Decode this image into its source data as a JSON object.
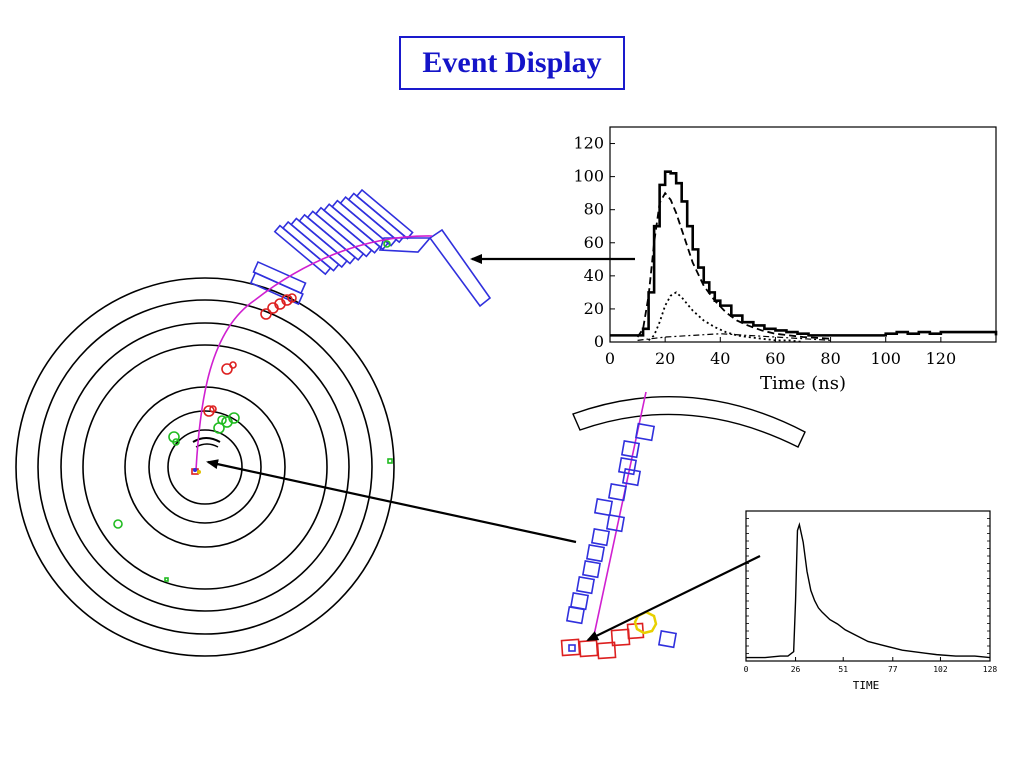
{
  "title": "Event Display",
  "chart_data": [
    {
      "type": "line",
      "title": "",
      "xlabel": "Time (ns)",
      "ylabel": "",
      "xlim": [
        0,
        140
      ],
      "ylim": [
        0,
        130
      ],
      "x_ticks": [
        "0",
        "20",
        "40",
        "60",
        "80",
        "100",
        "120"
      ],
      "y_ticks": [
        "0",
        "20",
        "40",
        "60",
        "80",
        "100",
        "120"
      ],
      "series": [
        {
          "style": "solid-step",
          "x": [
            0,
            10,
            12,
            14,
            16,
            18,
            20,
            22,
            24,
            26,
            28,
            30,
            32,
            34,
            36,
            38,
            40,
            44,
            48,
            52,
            56,
            60,
            64,
            68,
            72,
            76,
            80,
            100,
            104,
            108,
            112,
            116,
            120,
            140
          ],
          "y": [
            4,
            4,
            8,
            30,
            70,
            95,
            103,
            102,
            96,
            85,
            70,
            56,
            45,
            36,
            30,
            25,
            22,
            16,
            12,
            10,
            8,
            7,
            6,
            5,
            4,
            4,
            4,
            5,
            6,
            5,
            6,
            5,
            6,
            4
          ]
        },
        {
          "style": "dashed",
          "x": [
            10,
            12,
            14,
            16,
            18,
            20,
            22,
            24,
            26,
            28,
            30,
            34,
            38,
            42,
            46,
            50,
            55,
            60,
            65,
            70,
            80
          ],
          "y": [
            3,
            8,
            28,
            60,
            84,
            90,
            86,
            78,
            68,
            58,
            48,
            34,
            25,
            18,
            13,
            10,
            7,
            5,
            4,
            3,
            2
          ]
        },
        {
          "style": "dotted",
          "x": [
            14,
            16,
            18,
            20,
            22,
            24,
            26,
            28,
            30,
            34,
            38,
            42,
            46,
            50,
            55,
            60,
            65,
            70
          ],
          "y": [
            1,
            4,
            12,
            22,
            28,
            30,
            27,
            23,
            19,
            13,
            9,
            6,
            4,
            3,
            2,
            1,
            1,
            0
          ]
        },
        {
          "style": "dash-dot",
          "x": [
            10,
            20,
            30,
            40,
            50,
            60,
            70,
            80
          ],
          "y": [
            1,
            3,
            4,
            5,
            4,
            3,
            2,
            1
          ]
        }
      ]
    },
    {
      "type": "line",
      "title": "",
      "xlabel": "TIME",
      "ylabel": "",
      "xlim": [
        0,
        128
      ],
      "ylim": [
        0,
        100
      ],
      "x_ticks": [
        "0",
        "26",
        "51",
        "77",
        "102",
        "128"
      ],
      "series": [
        {
          "style": "solid",
          "x": [
            0,
            10,
            18,
            22,
            25,
            26,
            27,
            28,
            30,
            32,
            34,
            36,
            38,
            40,
            44,
            48,
            52,
            58,
            64,
            70,
            76,
            82,
            88,
            94,
            100,
            110,
            120,
            128
          ],
          "y": [
            1,
            1,
            2,
            2,
            5,
            40,
            88,
            92,
            80,
            60,
            47,
            40,
            35,
            32,
            27,
            24,
            20,
            16,
            12,
            10,
            8,
            6,
            5,
            4,
            3,
            2,
            2,
            1
          ]
        }
      ]
    }
  ]
}
